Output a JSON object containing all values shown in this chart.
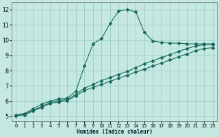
{
  "xlabel": "Humidex (Indice chaleur)",
  "bg_color": "#c5e8e3",
  "grid_color": "#90c8be",
  "line_color": "#1a6b5a",
  "xlim": [
    -0.5,
    23.5
  ],
  "ylim": [
    4.7,
    12.5
  ],
  "xticks": [
    0,
    1,
    2,
    3,
    4,
    5,
    6,
    7,
    8,
    9,
    10,
    11,
    12,
    13,
    14,
    15,
    16,
    17,
    18,
    19,
    20,
    21,
    22,
    23
  ],
  "yticks": [
    5,
    6,
    7,
    8,
    9,
    10,
    11,
    12
  ],
  "series": [
    {
      "x": [
        0,
        1,
        2,
        3,
        4,
        5,
        6,
        7,
        8,
        9,
        10,
        11,
        12,
        13,
        14,
        15,
        16,
        17,
        18,
        19,
        20,
        21,
        22,
        23
      ],
      "y": [
        5.1,
        5.2,
        5.5,
        5.8,
        6.0,
        6.15,
        6.2,
        6.65,
        8.3,
        9.75,
        10.1,
        11.1,
        11.9,
        12.0,
        11.85,
        10.5,
        9.95,
        9.85,
        9.8,
        9.8,
        9.75,
        9.75,
        9.75,
        9.75
      ]
    },
    {
      "x": [
        0,
        1,
        2,
        3,
        4,
        5,
        6,
        7,
        8,
        9,
        10,
        11,
        12,
        13,
        14,
        15,
        16,
        17,
        18,
        19,
        20,
        21,
        22,
        23
      ],
      "y": [
        5.05,
        5.15,
        5.4,
        5.65,
        5.9,
        6.05,
        6.1,
        6.45,
        6.85,
        7.1,
        7.35,
        7.55,
        7.75,
        7.95,
        8.2,
        8.45,
        8.65,
        8.85,
        9.05,
        9.25,
        9.45,
        9.6,
        9.7,
        9.72
      ]
    },
    {
      "x": [
        0,
        1,
        2,
        3,
        4,
        5,
        6,
        7,
        8,
        9,
        10,
        11,
        12,
        13,
        14,
        15,
        16,
        17,
        18,
        19,
        20,
        21,
        22,
        23
      ],
      "y": [
        5.05,
        5.1,
        5.35,
        5.6,
        5.85,
        5.95,
        6.05,
        6.35,
        6.7,
        6.9,
        7.1,
        7.3,
        7.5,
        7.7,
        7.9,
        8.1,
        8.3,
        8.5,
        8.7,
        8.9,
        9.1,
        9.3,
        9.45,
        9.5
      ]
    }
  ]
}
